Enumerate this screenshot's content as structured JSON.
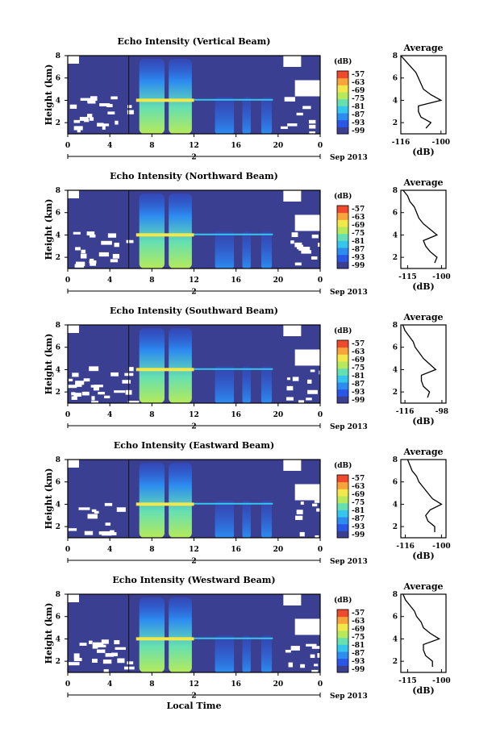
{
  "colorbar": {
    "unit": "(dB)",
    "ticks": [
      "-57",
      "-63",
      "-69",
      "-75",
      "-81",
      "-87",
      "-93",
      "-99"
    ],
    "colors": [
      "#3b3f91",
      "#2a56e8",
      "#2d8cf0",
      "#35c6ee",
      "#66e0b0",
      "#b6ea5a",
      "#f3e84a",
      "#f7a53a",
      "#ef4a2c"
    ]
  },
  "shared": {
    "ylabel": "Height (km)",
    "y_ticks": [
      "2",
      "4",
      "6",
      "8"
    ],
    "x_ticks": [
      "0",
      "4",
      "8",
      "12",
      "16",
      "20",
      "0"
    ],
    "day_marker": "2",
    "date_label": "Sep 2013",
    "xlabel": "Local Time",
    "avg_title": "Average",
    "avg_xlabel": "(dB)",
    "avg_y_ticks": [
      "2",
      "4",
      "6",
      "8"
    ]
  },
  "chart_data": [
    {
      "type": "heatmap",
      "title": "Echo Intensity (Vertical Beam)",
      "xlim": [
        0,
        24
      ],
      "ylim": [
        1,
        8
      ],
      "average": {
        "xticks": [
          "-116",
          "-100"
        ],
        "xlim": [
          -116,
          -98
        ],
        "profile": [
          [
            1.5,
            -106
          ],
          [
            2.0,
            -104
          ],
          [
            2.5,
            -108
          ],
          [
            3.0,
            -109
          ],
          [
            3.5,
            -109
          ],
          [
            4.0,
            -100
          ],
          [
            4.5,
            -104
          ],
          [
            5.0,
            -107
          ],
          [
            5.5,
            -108
          ],
          [
            6.0,
            -109
          ],
          [
            6.5,
            -110
          ],
          [
            7.0,
            -112
          ],
          [
            7.5,
            -114
          ],
          [
            8.0,
            -116
          ]
        ]
      }
    },
    {
      "type": "heatmap",
      "title": "Echo Intensity (Northward Beam)",
      "xlim": [
        0,
        24
      ],
      "ylim": [
        1,
        8
      ],
      "average": {
        "xticks": [
          "-115",
          "-100"
        ],
        "xlim": [
          -118,
          -98
        ],
        "profile": [
          [
            1.5,
            -103
          ],
          [
            2.0,
            -102
          ],
          [
            2.5,
            -105
          ],
          [
            3.0,
            -107
          ],
          [
            3.5,
            -108
          ],
          [
            4.0,
            -102
          ],
          [
            4.5,
            -105
          ],
          [
            5.0,
            -108
          ],
          [
            5.5,
            -110
          ],
          [
            6.0,
            -111
          ],
          [
            6.5,
            -112
          ],
          [
            7.0,
            -114
          ],
          [
            7.5,
            -115
          ],
          [
            8.0,
            -117
          ]
        ]
      }
    },
    {
      "type": "heatmap",
      "title": "Echo Intensity (Southward Beam)",
      "xlim": [
        0,
        24
      ],
      "ylim": [
        1,
        8
      ],
      "average": {
        "xticks": [
          "-116",
          "-98"
        ],
        "xlim": [
          -118,
          -96
        ],
        "profile": [
          [
            1.5,
            -105
          ],
          [
            2.0,
            -104
          ],
          [
            2.5,
            -107
          ],
          [
            3.0,
            -108
          ],
          [
            3.5,
            -108
          ],
          [
            4.0,
            -101
          ],
          [
            4.5,
            -104
          ],
          [
            5.0,
            -107
          ],
          [
            5.5,
            -109
          ],
          [
            6.0,
            -111
          ],
          [
            6.5,
            -112
          ],
          [
            7.0,
            -114
          ],
          [
            7.5,
            -116
          ],
          [
            8.0,
            -117
          ]
        ]
      }
    },
    {
      "type": "heatmap",
      "title": "Echo Intensity (Eastward Beam)",
      "xlim": [
        0,
        24
      ],
      "ylim": [
        1,
        8
      ],
      "average": {
        "xticks": [
          "-116",
          "-100"
        ],
        "xlim": [
          -118,
          -98
        ],
        "profile": [
          [
            1.5,
            -103
          ],
          [
            2.0,
            -103
          ],
          [
            2.5,
            -106
          ],
          [
            3.0,
            -107
          ],
          [
            3.5,
            -105
          ],
          [
            4.0,
            -100
          ],
          [
            4.5,
            -104
          ],
          [
            5.0,
            -106
          ],
          [
            5.5,
            -108
          ],
          [
            6.0,
            -110
          ],
          [
            6.5,
            -111
          ],
          [
            7.0,
            -113
          ],
          [
            7.5,
            -114
          ],
          [
            8.0,
            -115
          ]
        ]
      }
    },
    {
      "type": "heatmap",
      "title": "Echo Intensity (Westward Beam)",
      "xlim": [
        0,
        24
      ],
      "ylim": [
        1,
        8
      ],
      "average": {
        "xticks": [
          "-115",
          "-100"
        ],
        "xlim": [
          -118,
          -98
        ],
        "profile": [
          [
            1.5,
            -104
          ],
          [
            2.0,
            -104
          ],
          [
            2.5,
            -107
          ],
          [
            3.0,
            -108
          ],
          [
            3.5,
            -108
          ],
          [
            4.0,
            -101
          ],
          [
            4.5,
            -105
          ],
          [
            5.0,
            -108
          ],
          [
            5.5,
            -109
          ],
          [
            6.0,
            -111
          ],
          [
            6.5,
            -112
          ],
          [
            7.0,
            -114
          ],
          [
            7.5,
            -116
          ],
          [
            8.0,
            -117
          ]
        ]
      }
    }
  ]
}
